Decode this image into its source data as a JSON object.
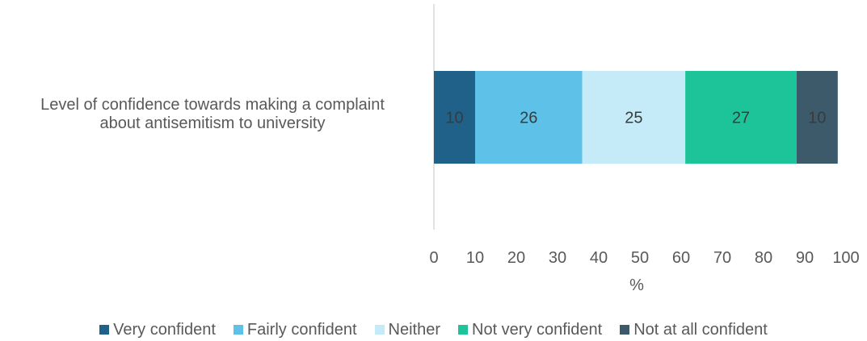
{
  "chart_data": {
    "type": "bar",
    "orientation": "horizontal",
    "stacked": true,
    "categories": [
      "Level of confidence towards making a complaint about antisemitism to university"
    ],
    "category_label_lines": [
      "Level of confidence towards making a complaint",
      "about antisemitism to university"
    ],
    "series": [
      {
        "name": "Very confident",
        "values": [
          10
        ],
        "color": "#1f6189"
      },
      {
        "name": "Fairly confident",
        "values": [
          26
        ],
        "color": "#5ec1e8"
      },
      {
        "name": "Neither",
        "values": [
          25
        ],
        "color": "#c5eaf8"
      },
      {
        "name": "Not very confident",
        "values": [
          27
        ],
        "color": "#1dc49a"
      },
      {
        "name": "Not at all confident",
        "values": [
          10
        ],
        "color": "#3d5a6b"
      }
    ],
    "xlim": [
      0,
      100
    ],
    "xticks": [
      "0",
      "10",
      "20",
      "30",
      "40",
      "50",
      "60",
      "70",
      "80",
      "90",
      "100"
    ],
    "xlabel": "%",
    "title": "",
    "grid": false,
    "legend_position": "bottom",
    "label_color": "#3a3a3a",
    "axis_color": "#d9d9d9"
  }
}
